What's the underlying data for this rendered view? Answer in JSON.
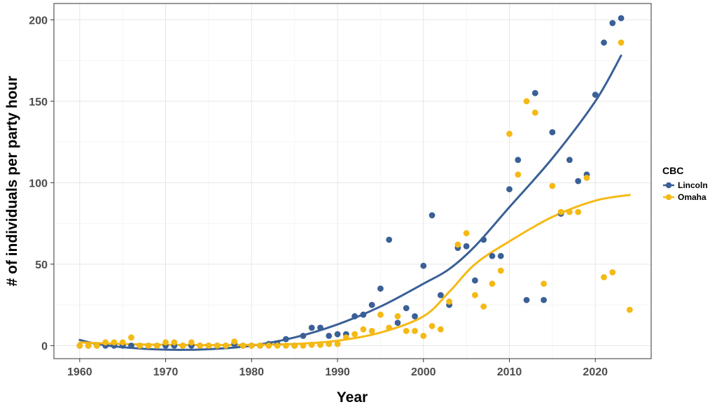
{
  "chart_data": {
    "type": "scatter",
    "xlabel": "Year",
    "ylabel": "# of individuals per party hour",
    "xlim": [
      1957,
      2026.5
    ],
    "ylim": [
      -8,
      210
    ],
    "x_ticks": [
      1960,
      1970,
      1980,
      1990,
      2000,
      2010,
      2020
    ],
    "y_ticks": [
      0,
      50,
      100,
      150,
      200
    ],
    "x_tick_labels": [
      "1960",
      "1970",
      "1980",
      "1990",
      "2000",
      "2010",
      "2020"
    ],
    "y_tick_labels": [
      "0",
      "50",
      "100",
      "150",
      "200"
    ],
    "grid": true,
    "legend": {
      "title": "CBC",
      "position": "right"
    },
    "series": [
      {
        "name": "Lincoln",
        "color": "#3a6096",
        "points": [
          [
            1960,
            0
          ],
          [
            1961,
            0
          ],
          [
            1962,
            0
          ],
          [
            1963,
            0
          ],
          [
            1964,
            0
          ],
          [
            1965,
            0
          ],
          [
            1966,
            0
          ],
          [
            1967,
            0
          ],
          [
            1968,
            0
          ],
          [
            1969,
            0
          ],
          [
            1970,
            0
          ],
          [
            1971,
            0
          ],
          [
            1972,
            0
          ],
          [
            1973,
            0
          ],
          [
            1974,
            0
          ],
          [
            1975,
            0
          ],
          [
            1976,
            0
          ],
          [
            1977,
            0
          ],
          [
            1978,
            1
          ],
          [
            1979,
            0
          ],
          [
            1980,
            0
          ],
          [
            1981,
            0
          ],
          [
            1982,
            1
          ],
          [
            1983,
            1
          ],
          [
            1984,
            4
          ],
          [
            1985,
            0
          ],
          [
            1986,
            6
          ],
          [
            1987,
            11
          ],
          [
            1988,
            11
          ],
          [
            1989,
            6
          ],
          [
            1990,
            7
          ],
          [
            1991,
            7
          ],
          [
            1992,
            18
          ],
          [
            1993,
            19
          ],
          [
            1994,
            25
          ],
          [
            1995,
            35
          ],
          [
            1996,
            65
          ],
          [
            1997,
            14
          ],
          [
            1998,
            23
          ],
          [
            1999,
            18
          ],
          [
            2000,
            49
          ],
          [
            2001,
            80
          ],
          [
            2002,
            31
          ],
          [
            2003,
            25
          ],
          [
            2004,
            60
          ],
          [
            2005,
            61
          ],
          [
            2006,
            40
          ],
          [
            2007,
            65
          ],
          [
            2008,
            55
          ],
          [
            2009,
            55
          ],
          [
            2010,
            96
          ],
          [
            2011,
            114
          ],
          [
            2012,
            28
          ],
          [
            2013,
            155
          ],
          [
            2014,
            28
          ],
          [
            2015,
            131
          ],
          [
            2016,
            81
          ],
          [
            2017,
            114
          ],
          [
            2018,
            101
          ],
          [
            2019,
            105
          ],
          [
            2020,
            154
          ],
          [
            2021,
            186
          ],
          [
            2022,
            198
          ],
          [
            2023,
            201
          ]
        ],
        "trend": [
          [
            1960,
            3.5
          ],
          [
            1962,
            1
          ],
          [
            1965,
            -1
          ],
          [
            1970,
            -2.5
          ],
          [
            1975,
            -2.2
          ],
          [
            1980,
            0
          ],
          [
            1985,
            5
          ],
          [
            1990,
            13
          ],
          [
            1995,
            24
          ],
          [
            2000,
            38
          ],
          [
            2003,
            47
          ],
          [
            2006,
            61
          ],
          [
            2010,
            85
          ],
          [
            2015,
            115
          ],
          [
            2020,
            150
          ],
          [
            2023,
            178
          ]
        ]
      },
      {
        "name": "Omaha",
        "color": "#f5b914",
        "points": [
          [
            1960,
            0
          ],
          [
            1961,
            0
          ],
          [
            1962,
            0
          ],
          [
            1963,
            2
          ],
          [
            1964,
            2
          ],
          [
            1965,
            2
          ],
          [
            1966,
            5
          ],
          [
            1967,
            0
          ],
          [
            1968,
            0
          ],
          [
            1969,
            0
          ],
          [
            1970,
            2
          ],
          [
            1971,
            2
          ],
          [
            1972,
            0
          ],
          [
            1973,
            2
          ],
          [
            1974,
            0
          ],
          [
            1975,
            0
          ],
          [
            1976,
            0
          ],
          [
            1977,
            0
          ],
          [
            1978,
            2.5
          ],
          [
            1979,
            0
          ],
          [
            1980,
            0
          ],
          [
            1981,
            0
          ],
          [
            1982,
            0
          ],
          [
            1983,
            0
          ],
          [
            1984,
            0
          ],
          [
            1985,
            0
          ],
          [
            1986,
            0
          ],
          [
            1987,
            0.5
          ],
          [
            1988,
            0.5
          ],
          [
            1989,
            1
          ],
          [
            1990,
            1
          ],
          [
            1991,
            5
          ],
          [
            1992,
            7
          ],
          [
            1993,
            10
          ],
          [
            1994,
            9
          ],
          [
            1995,
            19
          ],
          [
            1996,
            11
          ],
          [
            1997,
            18
          ],
          [
            1998,
            9
          ],
          [
            1999,
            9
          ],
          [
            2000,
            6
          ],
          [
            2001,
            12
          ],
          [
            2002,
            10
          ],
          [
            2003,
            27
          ],
          [
            2004,
            62
          ],
          [
            2005,
            69
          ],
          [
            2006,
            31
          ],
          [
            2007,
            24
          ],
          [
            2008,
            38
          ],
          [
            2009,
            46
          ],
          [
            2010,
            130
          ],
          [
            2011,
            105
          ],
          [
            2012,
            150
          ],
          [
            2013,
            143
          ],
          [
            2014,
            38
          ],
          [
            2015,
            98
          ],
          [
            2016,
            82
          ],
          [
            2017,
            82
          ],
          [
            2018,
            82
          ],
          [
            2019,
            103
          ],
          [
            2021,
            42
          ],
          [
            2022,
            45
          ],
          [
            2023,
            186
          ],
          [
            2024,
            22
          ]
        ],
        "trend": [
          [
            1960,
            2
          ],
          [
            1965,
            1
          ],
          [
            1970,
            0.5
          ],
          [
            1975,
            0.3
          ],
          [
            1980,
            0.5
          ],
          [
            1985,
            1
          ],
          [
            1990,
            3
          ],
          [
            1995,
            8
          ],
          [
            2000,
            18
          ],
          [
            2003,
            33
          ],
          [
            2006,
            50
          ],
          [
            2010,
            64
          ],
          [
            2015,
            79
          ],
          [
            2020,
            89
          ],
          [
            2024,
            92.5
          ]
        ]
      }
    ]
  }
}
